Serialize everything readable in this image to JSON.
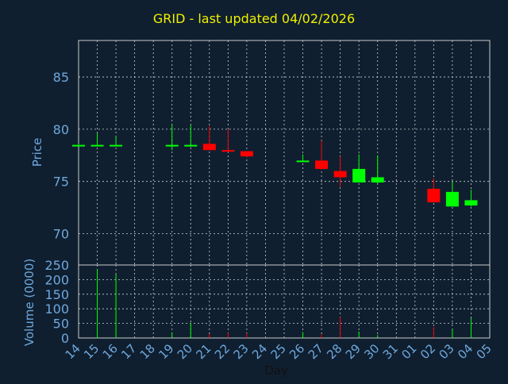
{
  "title": "GRID - last updated 04/02/2026",
  "colors": {
    "background": "#0f1f30",
    "frame": "#c8c8c8",
    "grid": "#d0d0d0",
    "axis_text": "#6fa8dc",
    "title": "#f0f000",
    "up": "#00ff00",
    "down": "#ff0000"
  },
  "chart_data": [
    {
      "type": "candlestick",
      "ylabel": "Price",
      "ylim": [
        67.0,
        88.5
      ],
      "yticks": [
        70,
        75,
        80,
        85
      ],
      "grid": true,
      "x_labels": [
        "14",
        "15",
        "16",
        "17",
        "18",
        "19",
        "20",
        "21",
        "22",
        "23",
        "24",
        "25",
        "26",
        "27",
        "28",
        "29",
        "30",
        "31",
        "01",
        "02",
        "03",
        "04",
        "05"
      ],
      "candles": [
        {
          "x": "14",
          "open": 78.5,
          "close": 78.5,
          "high": 78.6,
          "low": 78.4,
          "dir": "up"
        },
        {
          "x": "15",
          "open": 78.4,
          "close": 78.5,
          "high": 79.6,
          "low": 78.4,
          "dir": "up"
        },
        {
          "x": "16",
          "open": 78.4,
          "close": 78.5,
          "high": 79.3,
          "low": 78.4,
          "dir": "up"
        },
        {
          "x": "19",
          "open": 78.4,
          "close": 78.5,
          "high": 80.5,
          "low": 78.0,
          "dir": "up"
        },
        {
          "x": "20",
          "open": 78.4,
          "close": 78.5,
          "high": 80.4,
          "low": 78.3,
          "dir": "up"
        },
        {
          "x": "21",
          "open": 78.6,
          "close": 78.0,
          "high": 80.3,
          "low": 78.0,
          "dir": "down"
        },
        {
          "x": "22",
          "open": 78.0,
          "close": 77.9,
          "high": 80.0,
          "low": 77.8,
          "dir": "down"
        },
        {
          "x": "23",
          "open": 77.9,
          "close": 77.4,
          "high": 77.9,
          "low": 77.3,
          "dir": "down"
        },
        {
          "x": "26",
          "open": 76.9,
          "close": 77.0,
          "high": 77.6,
          "low": 76.9,
          "dir": "up"
        },
        {
          "x": "27",
          "open": 77.0,
          "close": 76.2,
          "high": 78.9,
          "low": 76.1,
          "dir": "down"
        },
        {
          "x": "28",
          "open": 76.0,
          "close": 75.4,
          "high": 77.4,
          "low": 74.5,
          "dir": "down"
        },
        {
          "x": "29",
          "open": 74.9,
          "close": 76.2,
          "high": 77.6,
          "low": 74.9,
          "dir": "up"
        },
        {
          "x": "30",
          "open": 74.9,
          "close": 75.4,
          "high": 77.5,
          "low": 74.8,
          "dir": "up"
        },
        {
          "x": "02",
          "open": 74.3,
          "close": 73.0,
          "high": 75.3,
          "low": 73.0,
          "dir": "down"
        },
        {
          "x": "03",
          "open": 72.6,
          "close": 74.0,
          "high": 75.0,
          "low": 72.6,
          "dir": "up"
        },
        {
          "x": "04",
          "open": 72.7,
          "close": 73.2,
          "high": 74.2,
          "low": 72.6,
          "dir": "up"
        }
      ]
    },
    {
      "type": "bar",
      "ylabel": "Volume (0000)",
      "xlabel": "Day",
      "ylim": [
        0,
        250
      ],
      "yticks": [
        0,
        50,
        100,
        150,
        200,
        250
      ],
      "grid": true,
      "bars": [
        {
          "x": "15",
          "value": 235,
          "dir": "up"
        },
        {
          "x": "16",
          "value": 218,
          "dir": "up"
        },
        {
          "x": "19",
          "value": 18,
          "dir": "up"
        },
        {
          "x": "20",
          "value": 52,
          "dir": "up"
        },
        {
          "x": "21",
          "value": 14,
          "dir": "down"
        },
        {
          "x": "22",
          "value": 18,
          "dir": "down"
        },
        {
          "x": "23",
          "value": 16,
          "dir": "down"
        },
        {
          "x": "26",
          "value": 20,
          "dir": "up"
        },
        {
          "x": "27",
          "value": 12,
          "dir": "down"
        },
        {
          "x": "28",
          "value": 72,
          "dir": "down"
        },
        {
          "x": "29",
          "value": 22,
          "dir": "up"
        },
        {
          "x": "30",
          "value": 10,
          "dir": "up"
        },
        {
          "x": "02",
          "value": 38,
          "dir": "down"
        },
        {
          "x": "03",
          "value": 30,
          "dir": "up"
        },
        {
          "x": "04",
          "value": 68,
          "dir": "up"
        }
      ]
    }
  ]
}
